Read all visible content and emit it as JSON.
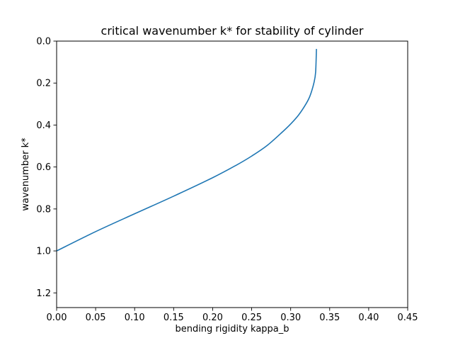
{
  "chart_data": {
    "type": "line",
    "title": "critical wavenumber k* for stability of cylinder",
    "xlabel": "bending rigidity kappa_b",
    "ylabel": "wavenumber k*",
    "xlim": [
      0.0,
      0.45
    ],
    "ylim": [
      1.27,
      0.0
    ],
    "y_inverted": true,
    "x_ticks": [
      0.0,
      0.05,
      0.1,
      0.15,
      0.2,
      0.25,
      0.3,
      0.35,
      0.4,
      0.45
    ],
    "x_tick_labels": [
      "0.00",
      "0.05",
      "0.10",
      "0.15",
      "0.20",
      "0.25",
      "0.30",
      "0.35",
      "0.40",
      "0.45"
    ],
    "y_ticks": [
      0.0,
      0.2,
      0.4,
      0.6,
      0.8,
      1.0,
      1.2
    ],
    "y_tick_labels": [
      "0.0",
      "0.2",
      "0.4",
      "0.6",
      "0.8",
      "1.0",
      "1.2"
    ],
    "grid": false,
    "series": [
      {
        "color": "#1f77b4",
        "x": [
          0.0,
          0.05,
          0.1,
          0.15,
          0.2,
          0.23,
          0.25,
          0.27,
          0.29,
          0.3,
          0.31,
          0.32,
          0.325,
          0.33,
          0.332,
          0.333
        ],
        "y": [
          1.0,
          0.908,
          0.823,
          0.739,
          0.651,
          0.592,
          0.548,
          0.497,
          0.431,
          0.395,
          0.353,
          0.297,
          0.259,
          0.196,
          0.147,
          0.04
        ]
      }
    ]
  }
}
